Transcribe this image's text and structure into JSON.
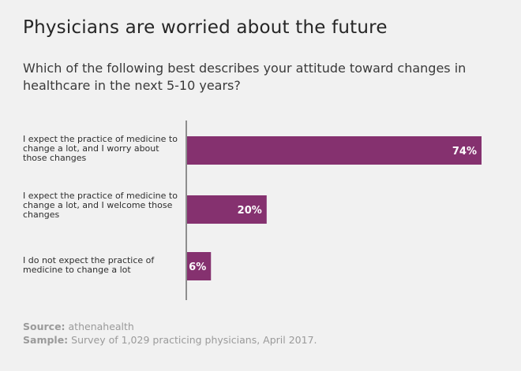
{
  "chart_data": {
    "type": "bar",
    "orientation": "horizontal",
    "title": "Physicians are worried about the future",
    "subtitle": "Which of the following best describes your attitude toward changes in healthcare in the next 5-10 years?",
    "categories": [
      "I expect the practice of medicine to change a lot, and I worry about those changes",
      "I expect the practice of medicine to change a lot, and I welcome those changes",
      "I do not expect the practice of medicine to change a lot"
    ],
    "values": [
      74,
      20,
      6
    ],
    "data_labels": [
      "74%",
      "20%",
      "6%"
    ],
    "xlim": [
      0,
      74
    ],
    "bar_color": "#85316f",
    "label_color": "#ffffff",
    "grid": false
  },
  "footer": {
    "source_label": "Source:",
    "source_text": " athenahealth",
    "sample_label": "Sample:",
    "sample_text": " Survey of 1,029 practicing physicians, April 2017."
  }
}
